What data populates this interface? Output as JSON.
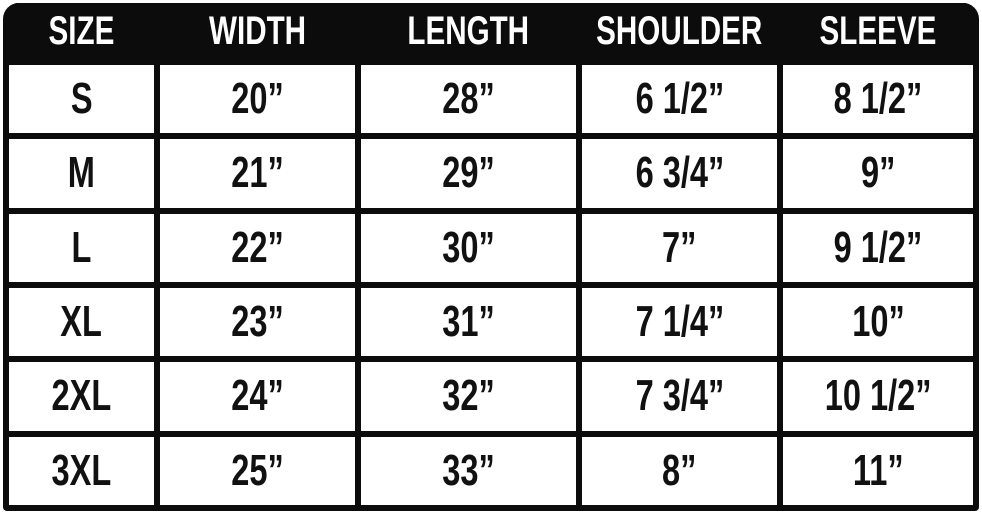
{
  "page": {
    "background": "#ffffff"
  },
  "colors": {
    "table_bg": "#0c0c0c",
    "header_bg": "#0c0c0c",
    "header_text": "#ffffff",
    "cell_bg": "#ffffff",
    "cell_text": "#111111"
  },
  "table": {
    "columns": [
      "SIZE",
      "WIDTH",
      "LENGTH",
      "SHOULDER",
      "SLEEVE"
    ],
    "rows": [
      [
        "S",
        "20”",
        "28”",
        "6 1/2”",
        "8 1/2”"
      ],
      [
        "M",
        "21”",
        "29”",
        "6 3/4”",
        "9”"
      ],
      [
        "L",
        "22”",
        "30”",
        "7”",
        "9 1/2”"
      ],
      [
        "XL",
        "23”",
        "31”",
        "7 1/4”",
        "10”"
      ],
      [
        "2XL",
        "24”",
        "32”",
        "7 3/4”",
        "10 1/2”"
      ],
      [
        "3XL",
        "25”",
        "33”",
        "8”",
        "11”"
      ]
    ]
  },
  "chart_data": {
    "type": "table",
    "title": "",
    "columns": [
      "SIZE",
      "WIDTH",
      "LENGTH",
      "SHOULDER",
      "SLEEVE"
    ],
    "rows": [
      [
        "S",
        "20”",
        "28”",
        "6 1/2”",
        "8 1/2”"
      ],
      [
        "M",
        "21”",
        "29”",
        "6 3/4”",
        "9”"
      ],
      [
        "L",
        "22”",
        "30”",
        "7”",
        "9 1/2”"
      ],
      [
        "XL",
        "23”",
        "31”",
        "7 1/4”",
        "10”"
      ],
      [
        "2XL",
        "24”",
        "32”",
        "7 3/4”",
        "10 1/2”"
      ],
      [
        "3XL",
        "25”",
        "33”",
        "8”",
        "11”"
      ]
    ],
    "rows_numeric": {
      "S": [
        20,
        28,
        6.5,
        8.5
      ],
      "M": [
        21,
        29,
        6.75,
        9
      ],
      "L": [
        22,
        30,
        7,
        9.5
      ],
      "XL": [
        23,
        31,
        7.25,
        10
      ],
      "2XL": [
        24,
        32,
        7.75,
        10.5
      ],
      "3XL": [
        25,
        33,
        8,
        11
      ]
    },
    "units": "inches"
  }
}
